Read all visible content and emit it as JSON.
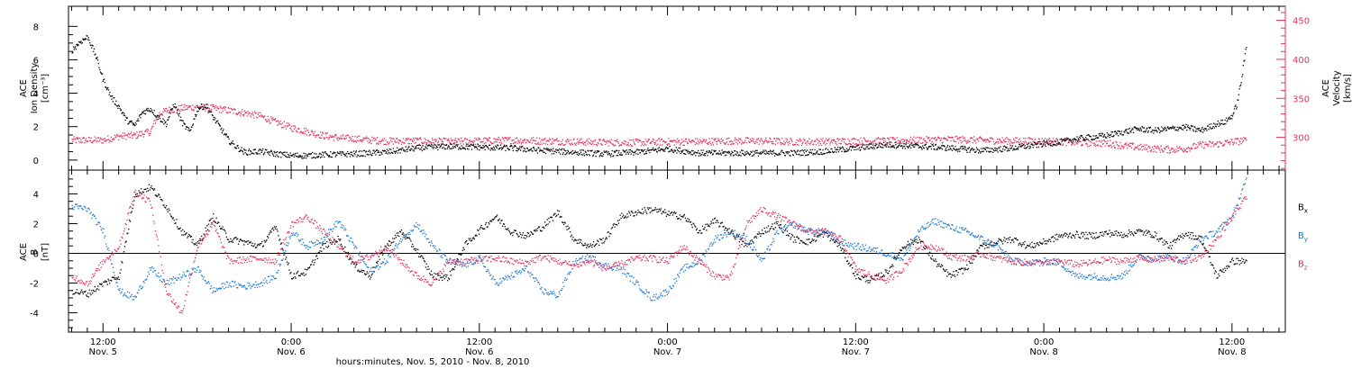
{
  "chart_data": [
    {
      "type": "scatter",
      "panel": "top",
      "ylabel_left": [
        "ACE",
        "Ion Density",
        "[cm⁻³]"
      ],
      "ylabel_right": [
        "ACE",
        "Velocity",
        "[km/s]"
      ],
      "ylim_left": [
        -0.6,
        9.2
      ],
      "yticks_left": [
        0,
        2,
        4,
        6,
        8
      ],
      "ylim_right": [
        258,
        468
      ],
      "yticks_right": [
        300,
        350,
        400,
        450
      ],
      "xlim_hours": [
        -2.2,
        75.4
      ],
      "series": [
        {
          "axis": "left",
          "color": "#000000",
          "x_hours": [
            -2,
            -1.5,
            -1,
            -0.5,
            0,
            0.5,
            1,
            1.5,
            2,
            2.5,
            3,
            3.5,
            4,
            4.5,
            5,
            5.5,
            6,
            6.5,
            7,
            7.5,
            8,
            8.5,
            9,
            10,
            11,
            12,
            13,
            14,
            16,
            18,
            20,
            22,
            24,
            26,
            28,
            30,
            32,
            34,
            36,
            38,
            40,
            42,
            44,
            46,
            48,
            50,
            52,
            54,
            56,
            58,
            60,
            61,
            62,
            63,
            64,
            65,
            66,
            67,
            68,
            69,
            70,
            71,
            71.5,
            72,
            72.3,
            72.6,
            72.9
          ],
          "values": [
            6.6,
            7.1,
            7.4,
            6.3,
            4.8,
            3.8,
            3.2,
            2.4,
            2.1,
            2.9,
            3.1,
            2.6,
            2.2,
            3.4,
            2.3,
            1.7,
            3.1,
            3.3,
            2.6,
            1.9,
            1.2,
            0.8,
            0.5,
            0.55,
            0.4,
            0.3,
            0.3,
            0.35,
            0.4,
            0.5,
            0.75,
            0.85,
            0.8,
            0.75,
            0.6,
            0.5,
            0.4,
            0.5,
            0.7,
            0.45,
            0.45,
            0.45,
            0.45,
            0.55,
            0.75,
            0.95,
            0.85,
            0.75,
            0.6,
            0.75,
            1.0,
            1.1,
            1.3,
            1.4,
            1.5,
            1.7,
            1.9,
            1.8,
            1.9,
            2.0,
            1.8,
            2.2,
            2.3,
            2.7,
            3.4,
            5.0,
            7.0
          ]
        },
        {
          "axis": "right",
          "color": "#e8305e",
          "x_hours": [
            -2,
            -1,
            0,
            1,
            2,
            3,
            3.5,
            4,
            5,
            6,
            7,
            8,
            9,
            10,
            11,
            12,
            13,
            14,
            15,
            16,
            17,
            18,
            19,
            20,
            22,
            24,
            26,
            28,
            30,
            32,
            34,
            36,
            38,
            40,
            42,
            44,
            46,
            48,
            50,
            52,
            54,
            56,
            58,
            60,
            62,
            64,
            65,
            66,
            67,
            68,
            69,
            70,
            71,
            72,
            72.9
          ],
          "values": [
            297,
            297,
            297,
            302,
            303,
            308,
            330,
            335,
            338,
            340,
            338,
            335,
            332,
            328,
            320,
            313,
            308,
            303,
            300,
            299,
            297,
            296,
            296,
            296,
            295,
            296,
            297,
            296,
            295,
            294,
            294,
            295,
            295,
            296,
            296,
            295,
            295,
            296,
            296,
            297,
            298,
            297,
            296,
            296,
            294,
            293,
            290,
            288,
            286,
            285,
            286,
            291,
            292,
            295,
            297
          ]
        }
      ]
    },
    {
      "type": "scatter",
      "panel": "bottom",
      "ylabel_left": [
        "ACE",
        "B",
        "[nT]"
      ],
      "ylim": [
        -5.3,
        5.6
      ],
      "yticks": [
        -4,
        -2,
        0,
        2,
        4
      ],
      "zero_line": true,
      "xlim_hours": [
        -2.2,
        75.4
      ],
      "series": [
        {
          "name": "B",
          "subscript": "x",
          "color": "#000000",
          "x_hours": [
            -2,
            -1,
            0,
            1,
            2,
            3,
            4,
            5,
            6,
            7,
            8,
            9,
            10,
            11,
            12,
            13,
            14,
            15,
            16,
            17,
            18,
            19,
            20,
            21,
            22,
            23,
            24,
            25,
            26,
            27,
            28,
            29,
            30,
            31,
            32,
            33,
            34,
            35,
            36,
            37,
            38,
            39,
            40,
            41,
            42,
            43,
            44,
            45,
            46,
            47,
            48,
            49,
            50,
            51,
            52,
            53,
            54,
            55,
            56,
            57,
            58,
            59,
            60,
            61,
            62,
            63,
            64,
            65,
            66,
            67,
            68,
            69,
            70,
            71,
            72,
            72.9
          ],
          "values": [
            -2.5,
            -2.7,
            -2.0,
            -1.5,
            4.0,
            4.5,
            3.2,
            1.5,
            0.6,
            2.5,
            1.0,
            0.8,
            0.5,
            1.8,
            -1.5,
            -1.2,
            0.5,
            1.0,
            -0.8,
            -1.5,
            0.5,
            1.5,
            0.2,
            -1.5,
            -1.6,
            0.5,
            1.6,
            2.5,
            1.5,
            1.2,
            1.8,
            2.8,
            1.0,
            0.5,
            1.0,
            2.5,
            2.8,
            3.0,
            2.7,
            2.5,
            1.5,
            2.2,
            1.5,
            0.5,
            1.5,
            2.0,
            1.0,
            0.8,
            1.4,
            0.5,
            -1.5,
            -1.8,
            -1.2,
            0.5,
            1.0,
            -0.5,
            -1.5,
            -1.0,
            0.5,
            0.8,
            1.0,
            0.5,
            0.8,
            1.2,
            1.3,
            1.2,
            1.4,
            1.3,
            1.5,
            1.3,
            0.5,
            1.4,
            1.0,
            -1.5,
            -0.5,
            -0.5
          ]
        },
        {
          "name": "B",
          "subscript": "y",
          "color": "#1a78d6",
          "x_hours": [
            -2,
            -1,
            0,
            1,
            2,
            3,
            4,
            5,
            6,
            7,
            8,
            9,
            10,
            11,
            12,
            13,
            14,
            15,
            16,
            17,
            18,
            19,
            20,
            21,
            22,
            23,
            24,
            25,
            26,
            27,
            28,
            29,
            30,
            31,
            32,
            33,
            34,
            35,
            36,
            37,
            38,
            39,
            40,
            41,
            42,
            43,
            44,
            45,
            46,
            47,
            48,
            49,
            50,
            51,
            52,
            53,
            54,
            55,
            56,
            57,
            58,
            59,
            60,
            61,
            62,
            63,
            64,
            65,
            66,
            67,
            68,
            69,
            70,
            71,
            72,
            72.9
          ],
          "values": [
            3.2,
            3.0,
            1.5,
            -2.5,
            -3.0,
            -1.0,
            -2.0,
            -1.5,
            -1.0,
            -2.5,
            -2.0,
            -2.2,
            -2.0,
            -1.5,
            1.5,
            0.5,
            1.0,
            2.2,
            0.5,
            -1.2,
            -0.5,
            1.0,
            2.0,
            0.5,
            -0.5,
            -0.8,
            -0.3,
            -2.0,
            -1.5,
            -1.0,
            -2.5,
            -2.8,
            -0.6,
            -0.2,
            -0.8,
            -1.0,
            -2.0,
            -3.0,
            -2.5,
            -1.0,
            -0.5,
            1.0,
            1.5,
            1.0,
            -0.5,
            1.5,
            2.0,
            1.5,
            1.5,
            0.8,
            0.5,
            0.3,
            0.0,
            -0.3,
            1.5,
            2.2,
            1.8,
            1.5,
            1.0,
            0.5,
            -0.5,
            -0.6,
            -0.5,
            -0.6,
            -1.5,
            -1.5,
            -1.6,
            -1.5,
            -0.2,
            -0.3,
            -0.2,
            -0.5,
            1.0,
            1.5,
            2.5,
            5.0
          ]
        },
        {
          "name": "B",
          "subscript": "z",
          "color": "#e8305e",
          "x_hours": [
            -2,
            -1,
            0,
            1,
            2,
            3,
            4,
            5,
            6,
            7,
            8,
            9,
            10,
            11,
            12,
            13,
            14,
            15,
            16,
            17,
            18,
            19,
            20,
            21,
            22,
            23,
            24,
            25,
            26,
            27,
            28,
            29,
            30,
            31,
            32,
            33,
            34,
            35,
            36,
            37,
            38,
            39,
            40,
            41,
            42,
            43,
            44,
            45,
            46,
            47,
            48,
            49,
            50,
            51,
            52,
            53,
            54,
            55,
            56,
            57,
            58,
            59,
            60,
            61,
            62,
            63,
            64,
            65,
            66,
            67,
            68,
            69,
            70,
            71,
            72,
            72.9
          ],
          "values": [
            -1.5,
            -2.0,
            -0.5,
            0.5,
            4.2,
            3.5,
            -2.5,
            -4.0,
            0.5,
            2.0,
            -0.5,
            -0.4,
            -0.3,
            -0.5,
            2.0,
            2.5,
            1.5,
            0.5,
            -0.5,
            -0.2,
            0.5,
            -0.5,
            -1.5,
            -2.0,
            -0.5,
            -0.5,
            -0.4,
            -0.3,
            -0.5,
            -0.6,
            -0.2,
            -0.5,
            -0.8,
            -0.5,
            -1.0,
            -0.7,
            -0.3,
            -0.3,
            -0.5,
            0.5,
            -0.5,
            -1.5,
            -1.6,
            2.0,
            3.0,
            2.5,
            2.0,
            1.5,
            1.5,
            1.0,
            -1.0,
            -1.5,
            -1.8,
            -1.0,
            0.5,
            0.5,
            -0.2,
            -0.3,
            0.0,
            -0.3,
            -0.5,
            -0.6,
            -0.6,
            -0.5,
            -0.7,
            -0.6,
            -0.4,
            -0.5,
            -0.3,
            -0.4,
            -0.3,
            -0.5,
            -0.2,
            1.0,
            2.5,
            3.8
          ]
        }
      ]
    }
  ],
  "x_axis": {
    "ticks": [
      {
        "hours": 0,
        "time": "12:00",
        "date": "Nov. 5"
      },
      {
        "hours": 12,
        "time": "0:00",
        "date": "Nov. 6"
      },
      {
        "hours": 24,
        "time": "12:00",
        "date": "Nov. 6"
      },
      {
        "hours": 36,
        "time": "0:00",
        "date": "Nov. 7"
      },
      {
        "hours": 48,
        "time": "12:00",
        "date": "Nov. 7"
      },
      {
        "hours": 60,
        "time": "0:00",
        "date": "Nov. 8"
      },
      {
        "hours": 72,
        "time": "12:00",
        "date": "Nov. 8"
      }
    ],
    "label": "hours:minutes, Nov.  5, 2010 - Nov.  8, 2010"
  }
}
